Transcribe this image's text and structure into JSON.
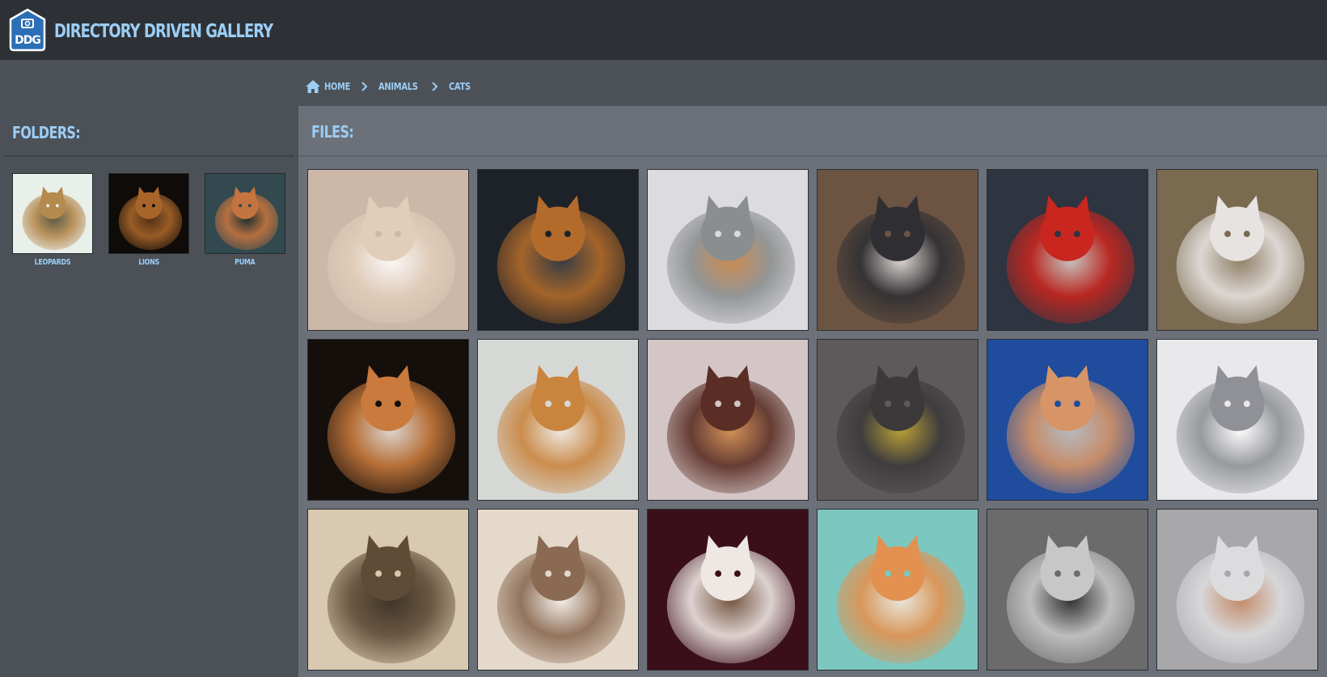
{
  "header": {
    "logo_text": "DDG",
    "title": "Directory Driven Gallery"
  },
  "breadcrumb": {
    "items": [
      {
        "label": "Home",
        "icon": "home-icon"
      },
      {
        "label": "Animals"
      },
      {
        "label": "Cats"
      }
    ]
  },
  "sidebar": {
    "heading": "Folders:",
    "folders": [
      {
        "label": "Leopards",
        "colors": [
          "#e9efe9",
          "#b58a4f",
          "#4e4a2f"
        ]
      },
      {
        "label": "Lions",
        "colors": [
          "#0e0b08",
          "#a8652a",
          "#5a3415"
        ]
      },
      {
        "label": "Puma",
        "colors": [
          "#31494f",
          "#c4743e",
          "#1f2b2d"
        ]
      }
    ]
  },
  "main": {
    "heading": "Files:",
    "files": [
      {
        "name": "cat-01",
        "colors": [
          "#cdb7a7",
          "#e2cdbb",
          "#ffffff"
        ]
      },
      {
        "name": "cat-02",
        "colors": [
          "#1d2228",
          "#b26b2b",
          "#3a3f46"
        ]
      },
      {
        "name": "cat-03",
        "colors": [
          "#dcdbe0",
          "#8b8e8f",
          "#c98240"
        ]
      },
      {
        "name": "cat-04",
        "colors": [
          "#6d5442",
          "#2f2f33",
          "#e8e5e4"
        ]
      },
      {
        "name": "cat-05",
        "colors": [
          "#2e3440",
          "#c8261f",
          "#d9d3cc"
        ]
      },
      {
        "name": "cat-06",
        "colors": [
          "#7a6a4f",
          "#e6e3e1",
          "#93836a"
        ]
      },
      {
        "name": "cat-07",
        "colors": [
          "#150f0c",
          "#c97a3c",
          "#f0ebe6"
        ]
      },
      {
        "name": "cat-08",
        "colors": [
          "#d6d8d6",
          "#c9843e",
          "#f1ece4"
        ]
      },
      {
        "name": "cat-09",
        "colors": [
          "#d4c6c6",
          "#5a2e24",
          "#d28b4c"
        ]
      },
      {
        "name": "cat-10",
        "colors": [
          "#5e5a5b",
          "#3b393a",
          "#c2a832"
        ]
      },
      {
        "name": "cat-11",
        "colors": [
          "#1f4c9c",
          "#d79466",
          "#c7c6c4"
        ]
      },
      {
        "name": "cat-12",
        "colors": [
          "#e9e9ec",
          "#8f9196",
          "#ffffff"
        ]
      },
      {
        "name": "cat-13",
        "colors": [
          "#d9c9b0",
          "#5f4b36",
          "#2c2419"
        ]
      },
      {
        "name": "cat-14",
        "colors": [
          "#e5d9cb",
          "#8a6a52",
          "#f6f1ec"
        ]
      },
      {
        "name": "cat-15",
        "colors": [
          "#3b0f1a",
          "#efe7e4",
          "#7b5e45"
        ]
      },
      {
        "name": "cat-16",
        "colors": [
          "#7cc8c0",
          "#e29150",
          "#f4e9de"
        ]
      },
      {
        "name": "cat-17",
        "colors": [
          "#6b6b6b",
          "#c7c7c7",
          "#2b2b2b"
        ]
      },
      {
        "name": "cat-18",
        "colors": [
          "#a8a8ab",
          "#dcdcde",
          "#c78860"
        ]
      }
    ]
  }
}
